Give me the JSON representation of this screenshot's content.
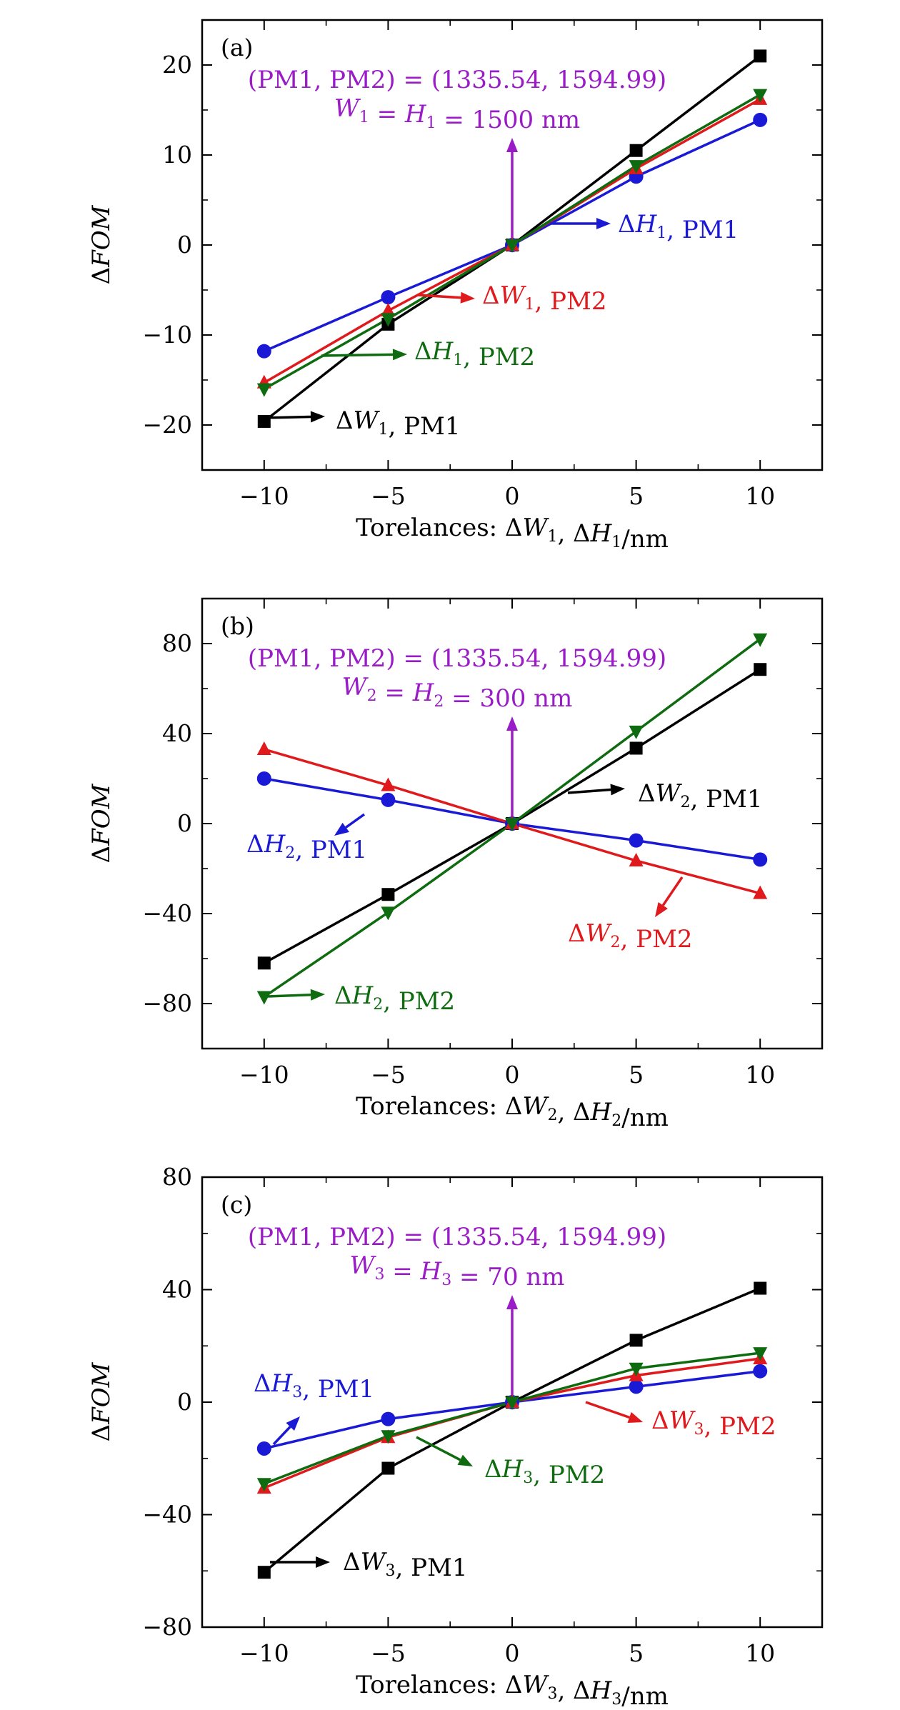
{
  "colors": {
    "PM1_W": "#000000",
    "PM1_H": "#1a1ad6",
    "PM2_W": "#e0191c",
    "PM2_H": "#0f6b0f",
    "center": "#9a1cc7"
  },
  "chart_data": [
    {
      "type": "line",
      "panel_label": "(a)",
      "xlabel": "Torelances: ΔW₁, ΔH₁/nm",
      "ylabel": "ΔFOM",
      "x": [
        -10,
        -5,
        0,
        5,
        10
      ],
      "xlim": [
        -12.5,
        12.5
      ],
      "ylim": [
        -25,
        25
      ],
      "xticks": [
        -10,
        -5,
        0,
        5,
        10
      ],
      "yticks": [
        -20,
        -10,
        0,
        10,
        20
      ],
      "ytick_labels": [
        "−20",
        "−10",
        "0",
        "10",
        "20"
      ],
      "xtick_labels": [
        "−10",
        "−5",
        "0",
        "5",
        "10"
      ],
      "series": [
        {
          "name": "ΔW₁, PM1",
          "marker": "square",
          "values": [
            -19.6,
            -8.8,
            0,
            10.5,
            21.0
          ]
        },
        {
          "name": "ΔH₁, PM1",
          "marker": "circle",
          "values": [
            -11.8,
            -5.8,
            0,
            7.6,
            13.9
          ]
        },
        {
          "name": "ΔW₁, PM2",
          "marker": "triangle-up",
          "values": [
            -15.3,
            -7.3,
            0,
            8.5,
            16.2
          ]
        },
        {
          "name": "ΔH₁, PM2",
          "marker": "triangle-down",
          "values": [
            -16.0,
            -8.2,
            0,
            8.8,
            16.7
          ]
        }
      ],
      "center_annotation": [
        "(PM1, PM2) = (1335.54, 1594.99)",
        "W₁ = H₁ = 1500 nm"
      ]
    },
    {
      "type": "line",
      "panel_label": "(b)",
      "xlabel": "Torelances: ΔW₂, ΔH₂/nm",
      "ylabel": "ΔFOM",
      "x": [
        -10,
        -5,
        0,
        5,
        10
      ],
      "xlim": [
        -12.5,
        12.5
      ],
      "ylim": [
        -100,
        100
      ],
      "xticks": [
        -10,
        -5,
        0,
        5,
        10
      ],
      "yticks": [
        -80,
        -40,
        0,
        40,
        80
      ],
      "ytick_labels": [
        "−80",
        "−40",
        "0",
        "40",
        "80"
      ],
      "xtick_labels": [
        "−10",
        "−5",
        "0",
        "5",
        "10"
      ],
      "series": [
        {
          "name": "ΔW₂, PM1",
          "marker": "square",
          "values": [
            -62.0,
            -31.5,
            0,
            33.5,
            68.5
          ]
        },
        {
          "name": "ΔH₂, PM1",
          "marker": "circle",
          "values": [
            20.0,
            10.5,
            0,
            -7.5,
            -16.0
          ]
        },
        {
          "name": "ΔW₂, PM2",
          "marker": "triangle-up",
          "values": [
            33.0,
            17.0,
            0,
            -16.5,
            -31.0
          ]
        },
        {
          "name": "ΔH₂, PM2",
          "marker": "triangle-down",
          "values": [
            -77.0,
            -39.5,
            0,
            41.0,
            82.0
          ]
        }
      ],
      "center_annotation": [
        "(PM1, PM2) = (1335.54, 1594.99)",
        "W₂ = H₂ = 300 nm"
      ]
    },
    {
      "type": "line",
      "panel_label": "(c)",
      "xlabel": "Torelances: ΔW₃, ΔH₃/nm",
      "ylabel": "ΔFOM",
      "x": [
        -10,
        -5,
        0,
        5,
        10
      ],
      "xlim": [
        -12.5,
        12.5
      ],
      "ylim": [
        -80,
        80
      ],
      "xticks": [
        -10,
        -5,
        0,
        5,
        10
      ],
      "yticks": [
        -80,
        -40,
        0,
        40,
        80
      ],
      "ytick_labels": [
        "−80",
        "−40",
        "0",
        "40",
        "80"
      ],
      "xtick_labels": [
        "−10",
        "−5",
        "0",
        "5",
        "10"
      ],
      "series": [
        {
          "name": "ΔW₃, PM1",
          "marker": "square",
          "values": [
            -60.5,
            -23.5,
            0,
            22.0,
            40.5
          ]
        },
        {
          "name": "ΔH₃, PM1",
          "marker": "circle",
          "values": [
            -16.5,
            -6.0,
            0,
            5.5,
            11.0
          ]
        },
        {
          "name": "ΔW₃, PM2",
          "marker": "triangle-up",
          "values": [
            -30.5,
            -12.5,
            0,
            9.5,
            15.5
          ]
        },
        {
          "name": "ΔH₃, PM2",
          "marker": "triangle-down",
          "values": [
            -29.0,
            -12.0,
            0,
            12.0,
            17.5
          ]
        }
      ],
      "center_annotation": [
        "(PM1, PM2) = (1335.54, 1594.99)",
        "W₃ = H₃ = 70 nm"
      ]
    }
  ]
}
